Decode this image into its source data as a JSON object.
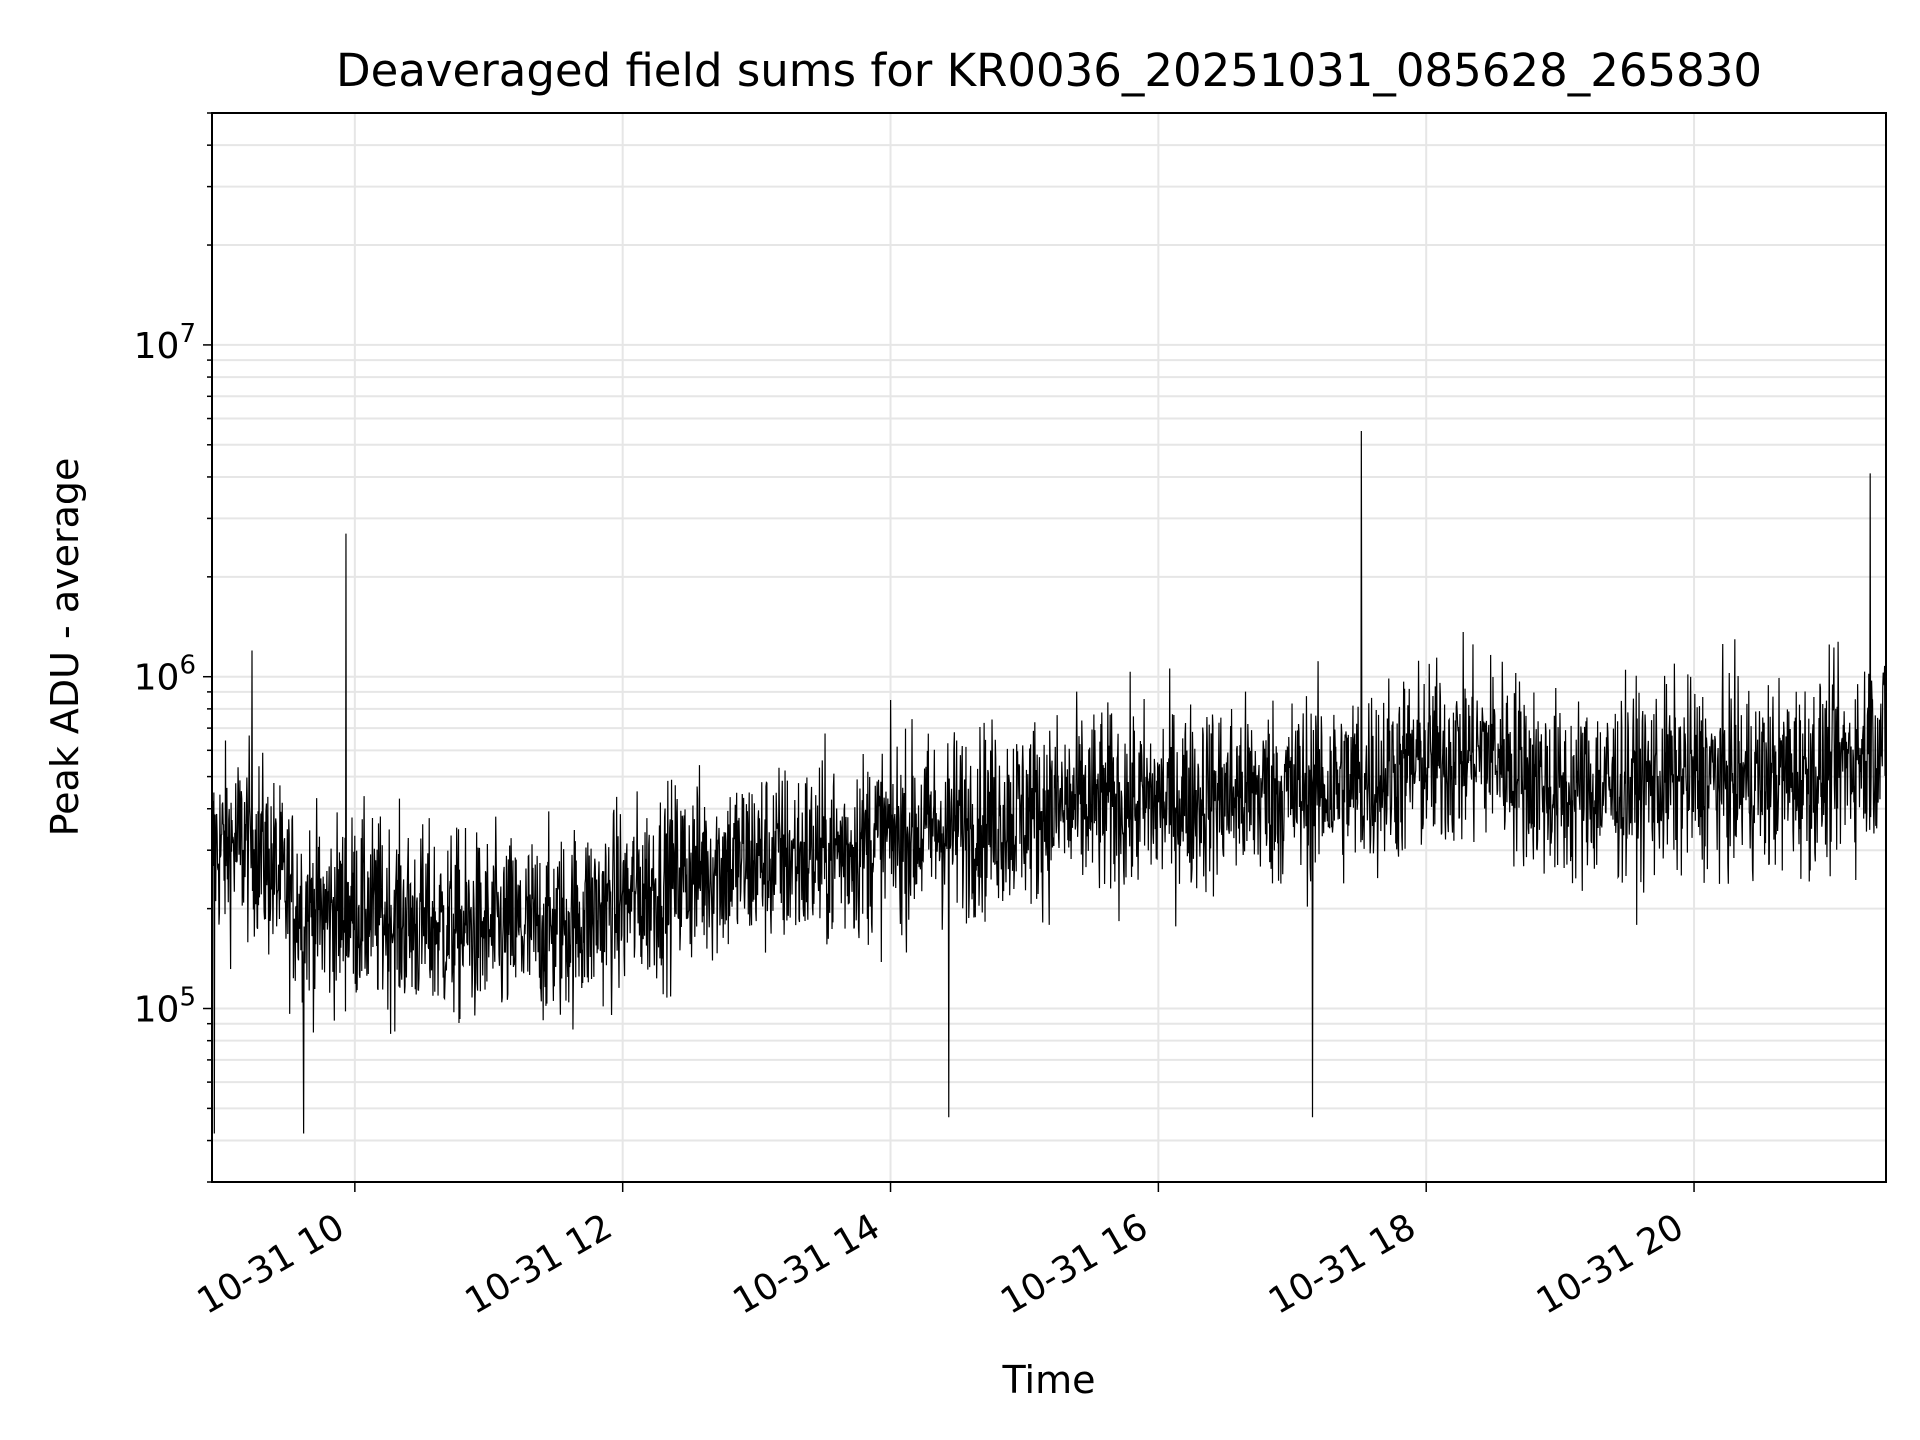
{
  "chart_data": {
    "type": "line",
    "title": "Deaveraged field sums for KR0036_20251031_085628_265830",
    "xlabel": "Time",
    "ylabel": "Peak ADU - average",
    "yscale": "log",
    "ylim": [
      30000,
      50000000
    ],
    "xlim": [
      "2025-10-31 08:56",
      "2025-10-31 21:26"
    ],
    "x_ticks": [
      {
        "label": "10-31 10",
        "time": "2025-10-31 10:00"
      },
      {
        "label": "10-31 12",
        "time": "2025-10-31 12:00"
      },
      {
        "label": "10-31 14",
        "time": "2025-10-31 14:00"
      },
      {
        "label": "10-31 16",
        "time": "2025-10-31 16:00"
      },
      {
        "label": "10-31 18",
        "time": "2025-10-31 18:00"
      },
      {
        "label": "10-31 20",
        "time": "2025-10-31 20:00"
      }
    ],
    "y_ticks": [
      {
        "base": "10",
        "exp": "5",
        "value": 100000
      },
      {
        "base": "10",
        "exp": "6",
        "value": 1000000
      },
      {
        "base": "10",
        "exp": "7",
        "value": 10000000
      }
    ],
    "grid": true,
    "line_color": "#000000",
    "grid_color": "#e6e6e6",
    "series": [
      {
        "x": [
          "2025-10-31 08:56",
          "2025-10-31 09:15",
          "2025-10-31 09:30",
          "2025-10-31 09:45",
          "2025-10-31 10:00",
          "2025-10-31 10:30",
          "2025-10-31 11:00",
          "2025-10-31 11:30",
          "2025-10-31 12:00",
          "2025-10-31 12:30",
          "2025-10-31 13:00",
          "2025-10-31 13:30",
          "2025-10-31 14:00",
          "2025-10-31 14:30",
          "2025-10-31 15:00",
          "2025-10-31 15:30",
          "2025-10-31 16:00",
          "2025-10-31 16:30",
          "2025-10-31 17:00",
          "2025-10-31 17:30",
          "2025-10-31 18:00",
          "2025-10-31 18:30",
          "2025-10-31 19:00",
          "2025-10-31 19:30",
          "2025-10-31 20:00",
          "2025-10-31 20:30",
          "2025-10-31 21:00",
          "2025-10-31 21:26"
        ],
        "y": [
          300000,
          320000,
          220000,
          190000,
          200000,
          180000,
          170000,
          175000,
          210000,
          260000,
          280000,
          290000,
          330000,
          360000,
          390000,
          410000,
          420000,
          440000,
          450000,
          480000,
          560000,
          600000,
          440000,
          470000,
          500000,
          490000,
          520000,
          650000
        ],
        "spikes": [
          {
            "time": "2025-10-31 09:56",
            "value": 2700000
          },
          {
            "time": "2025-10-31 17:31",
            "value": 5500000
          },
          {
            "time": "2025-10-31 21:19",
            "value": 4100000
          },
          {
            "time": "2025-10-31 09:14",
            "value": 1200000
          },
          {
            "time": "2025-10-31 14:26",
            "value": 47000
          },
          {
            "time": "2025-10-31 17:09",
            "value": 47000
          },
          {
            "time": "2025-10-31 09:37",
            "value": 42000
          },
          {
            "time": "2025-10-31 08:57",
            "value": 42000
          }
        ]
      }
    ]
  }
}
